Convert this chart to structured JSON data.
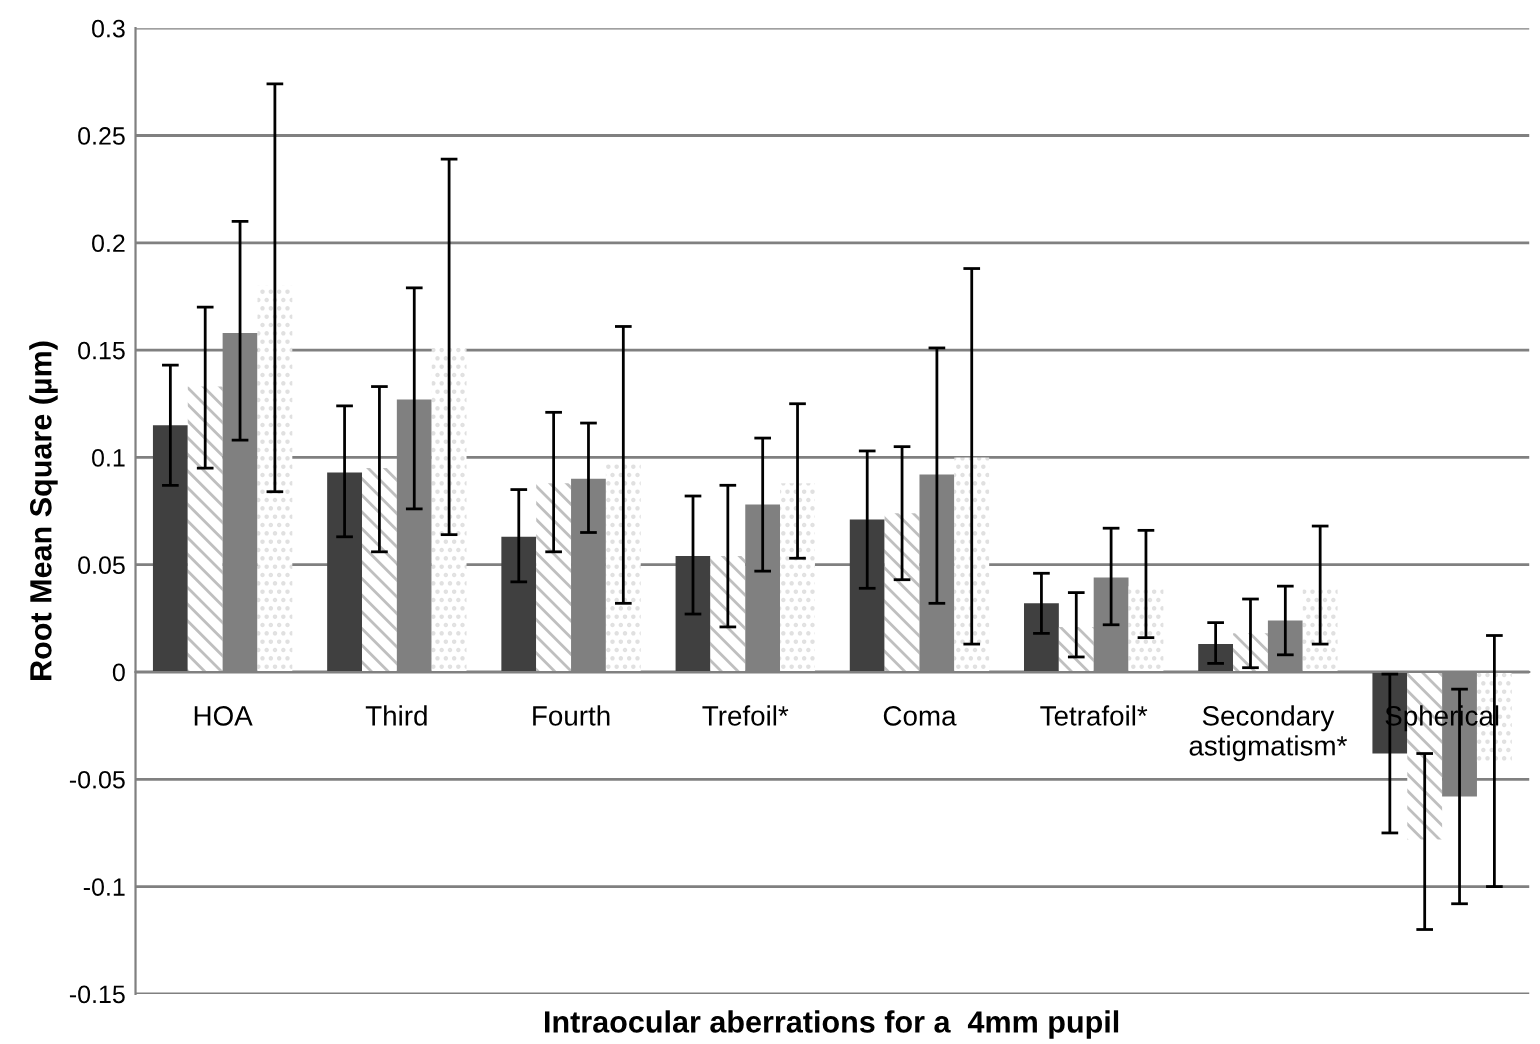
{
  "chart_data": {
    "type": "bar",
    "xlabel": "Intraocular aberrations for a  4mm pupil",
    "ylabel": "Root Mean Square (µm)",
    "categories": [
      "HOA",
      "Third",
      "Fourth",
      "Trefoil*",
      "Coma",
      "Tetrafoil*",
      "Secondary\nastigmatism*",
      "Spherical"
    ],
    "series": [
      {
        "color": "#404040",
        "values": [
          0.115,
          0.093,
          0.063,
          0.054,
          0.071,
          0.032,
          0.013,
          -0.038
        ],
        "errors": [
          [
            0.087,
            0.143
          ],
          [
            0.063,
            0.124
          ],
          [
            0.042,
            0.085
          ],
          [
            0.027,
            0.082
          ],
          [
            0.039,
            0.103
          ],
          [
            0.018,
            0.046
          ],
          [
            0.004,
            0.023
          ],
          [
            -0.075,
            -0.001
          ]
        ]
      },
      {
        "color": "#bfbfbf",
        "values": [
          0.133,
          0.095,
          0.088,
          0.054,
          0.074,
          0.021,
          0.018,
          -0.078
        ],
        "errors": [
          [
            0.095,
            0.17
          ],
          [
            0.056,
            0.133
          ],
          [
            0.056,
            0.121
          ],
          [
            0.021,
            0.087
          ],
          [
            0.043,
            0.105
          ],
          [
            0.007,
            0.037
          ],
          [
            0.002,
            0.034
          ],
          [
            -0.12,
            -0.038
          ]
        ]
      },
      {
        "color": "#808080",
        "values": [
          0.158,
          0.127,
          0.09,
          0.078,
          0.092,
          0.044,
          0.024,
          -0.058
        ],
        "errors": [
          [
            0.108,
            0.21
          ],
          [
            0.076,
            0.179
          ],
          [
            0.065,
            0.116
          ],
          [
            0.047,
            0.109
          ],
          [
            0.032,
            0.151
          ],
          [
            0.022,
            0.067
          ],
          [
            0.008,
            0.04
          ],
          [
            -0.108,
            -0.008
          ]
        ]
      },
      {
        "color": "#e0e0e0",
        "values": [
          0.18,
          0.151,
          0.097,
          0.088,
          0.1,
          0.04,
          0.04,
          -0.042
        ],
        "errors": [
          [
            0.084,
            0.274
          ],
          [
            0.064,
            0.239
          ],
          [
            0.032,
            0.161
          ],
          [
            0.053,
            0.125
          ],
          [
            0.013,
            0.188
          ],
          [
            0.016,
            0.066
          ],
          [
            0.013,
            0.068
          ],
          [
            -0.1,
            0.017
          ]
        ]
      }
    ],
    "ylim": [
      -0.15,
      0.3
    ],
    "yticks": [
      -0.15,
      -0.1,
      -0.05,
      0,
      0.05,
      0.1,
      0.15,
      0.2,
      0.25,
      0.3
    ],
    "grid": "y"
  }
}
